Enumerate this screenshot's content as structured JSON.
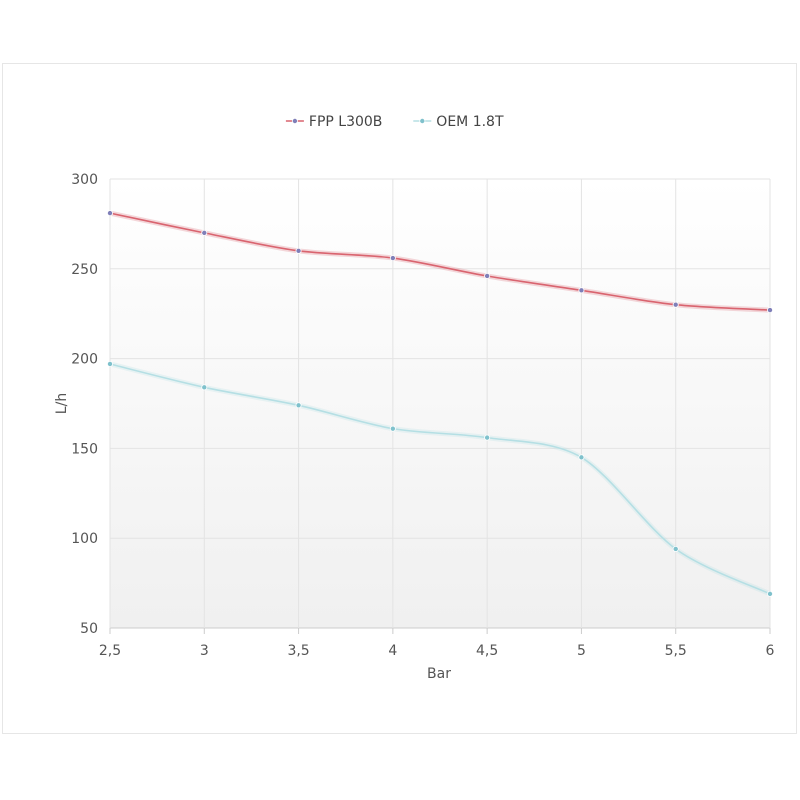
{
  "chart_data": {
    "type": "line",
    "xlabel": "Bar",
    "ylabel": "L/h",
    "x": [
      2.5,
      3,
      3.5,
      4,
      4.5,
      5,
      5.5,
      6
    ],
    "x_tick_labels": [
      "2,5",
      "3",
      "3,5",
      "4",
      "4,5",
      "5",
      "5,5",
      "6"
    ],
    "ylim": [
      50,
      300
    ],
    "y_ticks": [
      50,
      100,
      150,
      200,
      250,
      300
    ],
    "y_tick_labels": [
      "50",
      "100",
      "150",
      "200",
      "250",
      "300"
    ],
    "grid": true,
    "legend_position": "top-center",
    "series": [
      {
        "name": "FPP L300B",
        "color": "#d9646f",
        "marker_color": "#7f7fb8",
        "values": [
          281,
          270,
          260,
          256,
          246,
          238,
          230,
          227
        ]
      },
      {
        "name": "OEM 1.8T",
        "color": "#b5dfe4",
        "marker_color": "#7fc1cc",
        "values": [
          197,
          184,
          174,
          161,
          156,
          145,
          94,
          69
        ]
      }
    ]
  }
}
